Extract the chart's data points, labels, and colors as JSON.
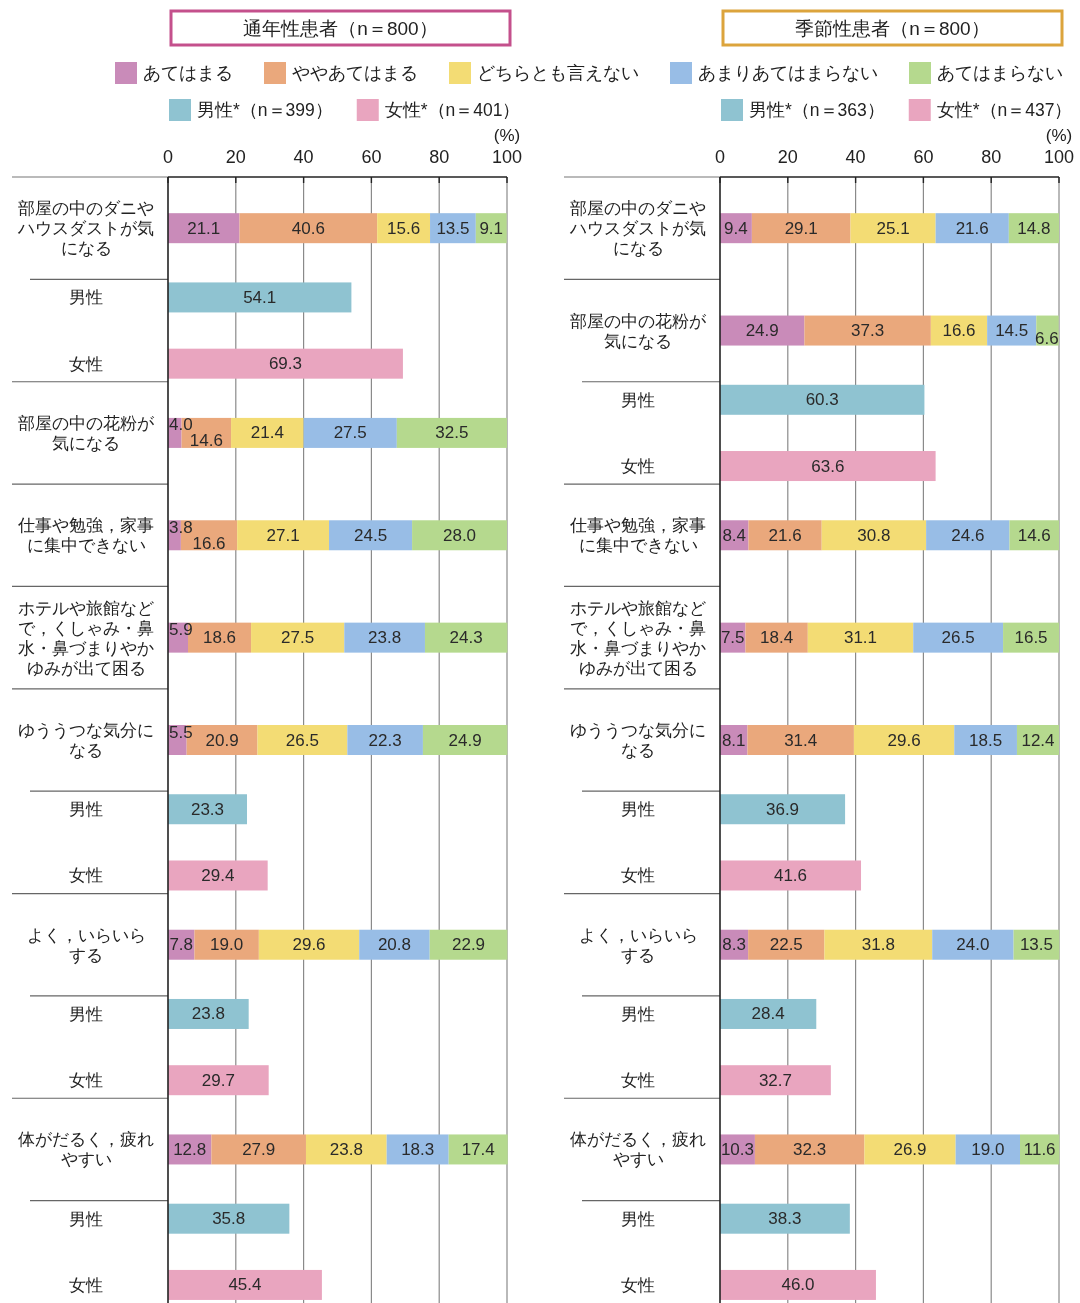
{
  "chart_data": [
    {
      "type": "bar",
      "orientation": "horizontal",
      "stacked": true,
      "title": "通年性患者（n＝800）",
      "xlabel": "(%)",
      "xlim": [
        0,
        100
      ],
      "xticks": [
        0,
        20,
        40,
        60,
        80,
        100
      ],
      "grid": "x",
      "legend": "top",
      "categories": [
        "部屋の中のダニやハウスダストが気になる",
        "男性",
        "女性",
        "部屋の中の花粉が気になる",
        "仕事や勉強，家事に集中できない",
        "ホテルや旅館などで，くしゃみ・鼻水・鼻づまりやかゆみが出て困る",
        "ゆううつな気分になる",
        "男性",
        "女性",
        "よく，いらいらする",
        "男性",
        "女性",
        "体がだるく，疲れやすい",
        "男性",
        "女性"
      ],
      "series": [
        {
          "name": "あてはまる",
          "color": "#c98bb9",
          "values": [
            21.1,
            null,
            null,
            4.0,
            3.8,
            5.9,
            5.5,
            null,
            null,
            7.8,
            null,
            null,
            12.8,
            null,
            null
          ],
          "value_labels": [
            "21.1",
            null,
            null,
            "4.0",
            "3.8",
            "5.9",
            "5.5",
            null,
            null,
            "7.8",
            null,
            null,
            "12.8",
            null,
            null
          ]
        },
        {
          "name": "ややあてはまる",
          "color": "#eaa87c",
          "values": [
            40.6,
            null,
            null,
            14.6,
            16.6,
            18.6,
            20.9,
            null,
            null,
            19.0,
            null,
            null,
            27.9,
            null,
            null
          ],
          "value_labels": [
            "40.6",
            null,
            null,
            "14.6",
            "16.6",
            "18.6",
            "20.9",
            null,
            null,
            "19.0",
            null,
            null,
            "27.9",
            null,
            null
          ]
        },
        {
          "name": "どちらとも言えない",
          "color": "#f3dc74",
          "values": [
            15.6,
            null,
            null,
            21.4,
            27.1,
            27.5,
            26.5,
            null,
            null,
            29.6,
            null,
            null,
            23.8,
            null,
            null
          ],
          "value_labels": [
            "15.6",
            null,
            null,
            "21.4",
            "27.1",
            "27.5",
            "26.5",
            null,
            null,
            "29.6",
            null,
            null,
            "23.8",
            null,
            null
          ]
        },
        {
          "name": "あまりあてはまらない",
          "color": "#98bde6",
          "values": [
            13.5,
            null,
            null,
            27.5,
            24.5,
            23.8,
            22.3,
            null,
            null,
            20.8,
            null,
            null,
            18.3,
            null,
            null
          ],
          "value_labels": [
            "13.5",
            null,
            null,
            "27.5",
            "24.5",
            "23.8",
            "22.3",
            null,
            null,
            "20.8",
            null,
            null,
            "18.3",
            null,
            null
          ]
        },
        {
          "name": "あてはまらない",
          "color": "#b5d98e",
          "values": [
            9.1,
            null,
            null,
            32.5,
            28.0,
            24.3,
            24.9,
            null,
            null,
            22.9,
            null,
            null,
            17.4,
            null,
            null
          ],
          "value_labels": [
            "9.1",
            null,
            null,
            "32.5",
            "28.0",
            "24.3",
            "24.9",
            null,
            null,
            "22.9",
            null,
            null,
            "17.4",
            null,
            null
          ]
        },
        {
          "name": "男性*（n＝399）",
          "color": "#8fc3d1",
          "values": [
            null,
            54.1,
            null,
            null,
            null,
            null,
            null,
            23.3,
            null,
            null,
            23.8,
            null,
            null,
            35.8,
            null
          ],
          "value_labels": [
            null,
            "54.1",
            null,
            null,
            null,
            null,
            null,
            "23.3",
            null,
            null,
            "23.8",
            null,
            null,
            "35.8",
            null
          ]
        },
        {
          "name": "女性*（n＝401）",
          "color": "#e9a5bf",
          "values": [
            null,
            null,
            69.3,
            null,
            null,
            null,
            null,
            null,
            29.4,
            null,
            null,
            29.7,
            null,
            null,
            45.4
          ],
          "value_labels": [
            null,
            null,
            "69.3",
            null,
            null,
            null,
            null,
            null,
            "29.4",
            null,
            null,
            "29.7",
            null,
            null,
            "45.4"
          ]
        }
      ]
    },
    {
      "type": "bar",
      "orientation": "horizontal",
      "stacked": true,
      "title": "季節性患者（n＝800）",
      "xlabel": "(%)",
      "xlim": [
        0,
        100
      ],
      "xticks": [
        0,
        20,
        40,
        60,
        80,
        100
      ],
      "grid": "x",
      "legend": "top",
      "categories": [
        "部屋の中のダニやハウスダストが気になる",
        "部屋の中の花粉が気になる",
        "男性",
        "女性",
        "仕事や勉強，家事に集中できない",
        "ホテルや旅館などで，くしゃみ・鼻水・鼻づまりやかゆみが出て困る",
        "ゆううつな気分になる",
        "男性",
        "女性",
        "よく，いらいらする",
        "男性",
        "女性",
        "体がだるく，疲れやすい",
        "男性",
        "女性"
      ],
      "series": [
        {
          "color": "#c98bb9",
          "values": [
            9.4,
            24.9,
            null,
            null,
            8.4,
            7.5,
            8.1,
            null,
            null,
            8.3,
            null,
            null,
            10.3,
            null,
            null
          ],
          "value_labels": [
            "9.4",
            "24.9",
            null,
            null,
            "8.4",
            "7.5",
            "8.1",
            null,
            null,
            "8.3",
            null,
            null,
            "10.3",
            null,
            null
          ]
        },
        {
          "color": "#eaa87c",
          "values": [
            29.1,
            37.3,
            null,
            null,
            21.6,
            18.4,
            31.4,
            null,
            null,
            22.5,
            null,
            null,
            32.3,
            null,
            null
          ],
          "value_labels": [
            "29.1",
            "37.3",
            null,
            null,
            "21.6",
            "18.4",
            "31.4",
            null,
            null,
            "22.5",
            null,
            null,
            "32.3",
            null,
            null
          ]
        },
        {
          "color": "#f3dc74",
          "values": [
            25.1,
            16.6,
            null,
            null,
            30.8,
            31.1,
            29.6,
            null,
            null,
            31.8,
            null,
            null,
            26.9,
            null,
            null
          ],
          "value_labels": [
            "25.1",
            "16.6",
            null,
            null,
            "30.8",
            "31.1",
            "29.6",
            null,
            null,
            "31.8",
            null,
            null,
            "26.9",
            null,
            null
          ]
        },
        {
          "color": "#98bde6",
          "values": [
            21.6,
            14.5,
            null,
            null,
            24.6,
            26.5,
            18.5,
            null,
            null,
            24.0,
            null,
            null,
            19.0,
            null,
            null
          ],
          "value_labels": [
            "21.6",
            "14.5",
            null,
            null,
            "24.6",
            "26.5",
            "18.5",
            null,
            null,
            "24.0",
            null,
            null,
            "19.0",
            null,
            null
          ]
        },
        {
          "color": "#b5d98e",
          "values": [
            14.8,
            6.6,
            null,
            null,
            14.6,
            16.5,
            12.4,
            null,
            null,
            13.5,
            null,
            null,
            11.6,
            null,
            null
          ],
          "value_labels": [
            "14.8",
            "6.6",
            null,
            null,
            "14.6",
            "16.5",
            "12.4",
            null,
            null,
            "13.5",
            null,
            null,
            "11.6",
            null,
            null
          ]
        },
        {
          "name": "男性*（n＝363）",
          "color": "#8fc3d1",
          "values": [
            null,
            null,
            60.3,
            null,
            null,
            null,
            null,
            36.9,
            null,
            null,
            28.4,
            null,
            null,
            38.3,
            null
          ],
          "value_labels": [
            null,
            null,
            "60.3",
            null,
            null,
            null,
            null,
            "36.9",
            null,
            null,
            "28.4",
            null,
            null,
            "38.3",
            null
          ]
        },
        {
          "name": "女性*（n＝437）",
          "color": "#e9a5bf",
          "values": [
            null,
            null,
            null,
            63.6,
            null,
            null,
            null,
            null,
            41.6,
            null,
            null,
            32.7,
            null,
            null,
            46.0
          ],
          "value_labels": [
            null,
            null,
            null,
            "63.6",
            null,
            null,
            null,
            null,
            "41.6",
            null,
            null,
            "32.7",
            null,
            null,
            "46.0"
          ]
        }
      ]
    }
  ]
}
